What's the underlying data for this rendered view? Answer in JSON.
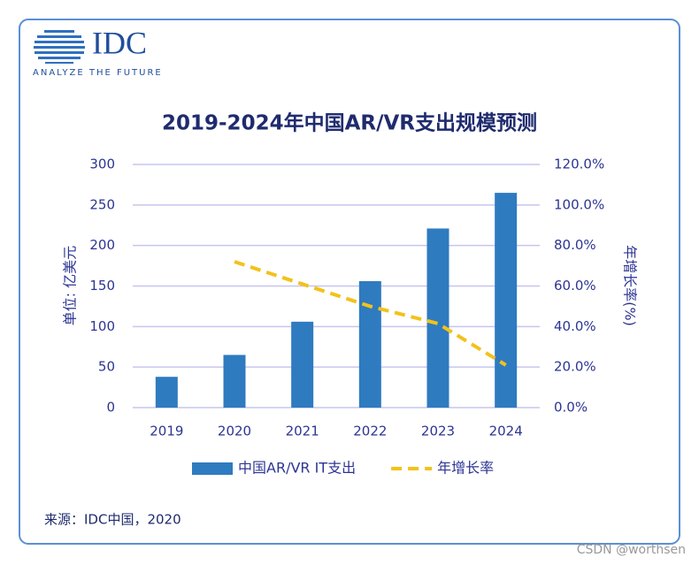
{
  "logo": {
    "name": "IDC",
    "tagline": "ANALYZE THE FUTURE"
  },
  "chart_data": {
    "type": "bar",
    "title": "2019-2024年中国AR/VR支出规模预测",
    "y_label": "单位: 亿美元",
    "y2_label": "年增长率(%)",
    "categories": [
      "2019",
      "2020",
      "2021",
      "2022",
      "2023",
      "2024"
    ],
    "series": [
      {
        "name": "中国AR/VR IT支出",
        "type": "bar",
        "color": "#2e7bc0",
        "values": [
          38,
          65,
          106,
          156,
          221,
          265
        ]
      },
      {
        "name": "年增长率",
        "type": "line",
        "color": "#f2c21b",
        "axis": "y2",
        "dashed": true,
        "values": [
          null,
          72,
          61,
          50,
          41.5,
          21
        ]
      }
    ],
    "ylim": [
      0,
      300
    ],
    "yticks": [
      0,
      50,
      100,
      150,
      200,
      250,
      300
    ],
    "y2lim": [
      0,
      120
    ],
    "y2ticks": [
      {
        "value": 0,
        "label": "0.0%"
      },
      {
        "value": 20,
        "label": "20.0%"
      },
      {
        "value": 40,
        "label": "40.0%"
      },
      {
        "value": 60,
        "label": "60.0%"
      },
      {
        "value": 80,
        "label": "80.0%"
      },
      {
        "value": 100,
        "label": "100.0%"
      },
      {
        "value": 120,
        "label": "120.0%"
      }
    ],
    "grid": true,
    "legend": "bottom"
  },
  "source": "来源：IDC中国，2020",
  "watermark": "CSDN @worthsen"
}
